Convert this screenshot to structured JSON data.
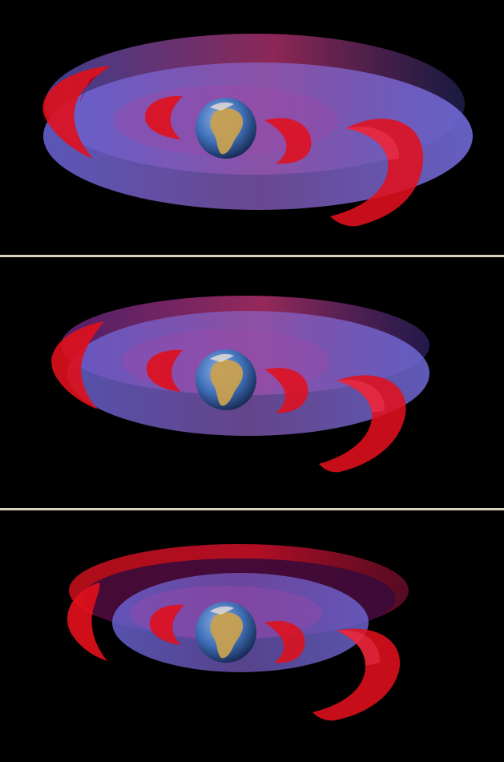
{
  "colors": {
    "background": "#000000",
    "divider": "#d8d0c0",
    "disk_blue": "#7f78e6",
    "belt_red": "#e0101c",
    "ocean": "#3f6fb8",
    "land": "#c8a050"
  },
  "panels": [
    {
      "name": "panel-top",
      "outer_belt_scale": 1.0
    },
    {
      "name": "panel-middle",
      "outer_belt_scale": 0.93
    },
    {
      "name": "panel-bottom",
      "outer_belt_scale": 0.82
    }
  ]
}
